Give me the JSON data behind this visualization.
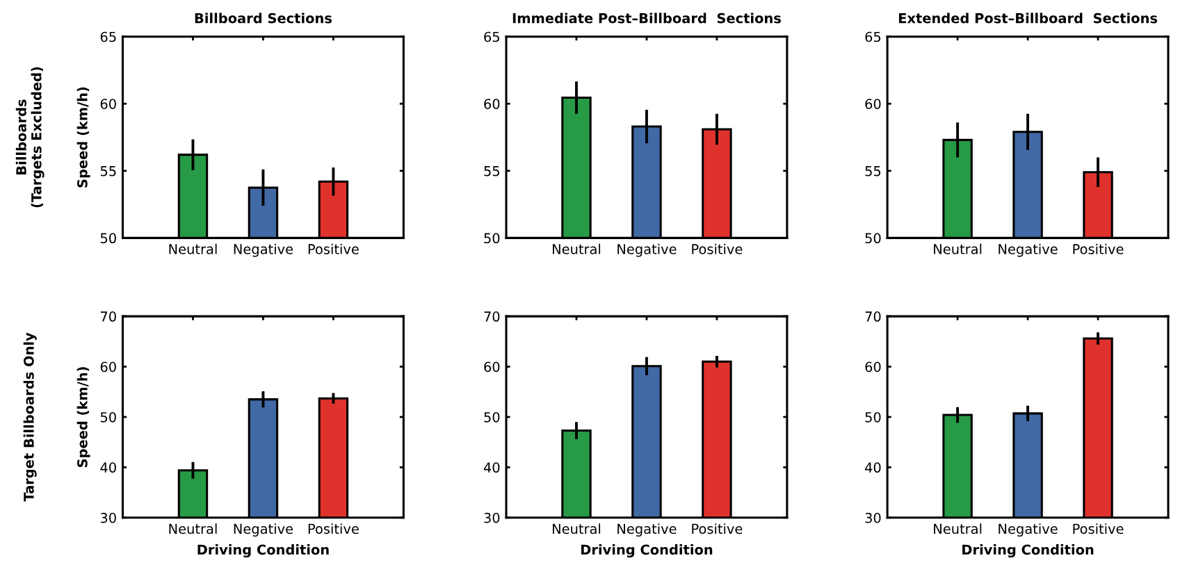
{
  "chart_data": [
    {
      "type": "bar",
      "title": "Billboard Sections",
      "ylabel": "Speed (km/h)",
      "annotations": [
        "Billboards\n(Targets Excluded)"
      ],
      "categories": [
        "Neutral",
        "Negative",
        "Positive"
      ],
      "values": [
        56.2,
        53.75,
        54.2
      ],
      "errors": [
        1.15,
        1.35,
        1.05
      ],
      "colors": [
        "#279a45",
        "#4169a5",
        "#e0322c"
      ],
      "ylim": [
        50,
        65
      ],
      "yticks": [
        50,
        55,
        60,
        65
      ]
    },
    {
      "type": "bar",
      "title": "Immediate Post–Billboard  Sections",
      "categories": [
        "Neutral",
        "Negative",
        "Positive"
      ],
      "values": [
        60.45,
        58.3,
        58.1
      ],
      "errors": [
        1.2,
        1.25,
        1.15
      ],
      "colors": [
        "#279a45",
        "#4169a5",
        "#e0322c"
      ],
      "ylim": [
        50,
        65
      ],
      "yticks": [
        50,
        55,
        60,
        65
      ]
    },
    {
      "type": "bar",
      "title": "Extended Post–Billboard  Sections",
      "categories": [
        "Neutral",
        "Negative",
        "Positive"
      ],
      "values": [
        57.3,
        57.9,
        54.9
      ],
      "errors": [
        1.3,
        1.35,
        1.1
      ],
      "colors": [
        "#279a45",
        "#4169a5",
        "#e0322c"
      ],
      "ylim": [
        50,
        65
      ],
      "yticks": [
        50,
        55,
        60,
        65
      ]
    },
    {
      "type": "bar",
      "ylabel": "Speed (km/h)",
      "xlabel": "Driving Condition",
      "annotations": [
        "Target Billboards Only"
      ],
      "categories": [
        "Neutral",
        "Negative",
        "Positive"
      ],
      "values": [
        39.4,
        53.5,
        53.7
      ],
      "errors": [
        1.65,
        1.6,
        1.05
      ],
      "colors": [
        "#279a45",
        "#4169a5",
        "#e0322c"
      ],
      "ylim": [
        30,
        70
      ],
      "yticks": [
        30,
        40,
        50,
        60,
        70
      ]
    },
    {
      "type": "bar",
      "xlabel": "Driving Condition",
      "categories": [
        "Neutral",
        "Negative",
        "Positive"
      ],
      "values": [
        47.3,
        60.1,
        61.0
      ],
      "errors": [
        1.7,
        1.8,
        1.15
      ],
      "colors": [
        "#279a45",
        "#4169a5",
        "#e0322c"
      ],
      "ylim": [
        30,
        70
      ],
      "yticks": [
        30,
        40,
        50,
        60,
        70
      ]
    },
    {
      "type": "bar",
      "xlabel": "Driving Condition",
      "categories": [
        "Neutral",
        "Negative",
        "Positive"
      ],
      "values": [
        50.4,
        50.7,
        65.6
      ],
      "errors": [
        1.55,
        1.55,
        1.2
      ],
      "colors": [
        "#279a45",
        "#4169a5",
        "#e0322c"
      ],
      "ylim": [
        30,
        70
      ],
      "yticks": [
        30,
        40,
        50,
        60,
        70
      ]
    }
  ]
}
